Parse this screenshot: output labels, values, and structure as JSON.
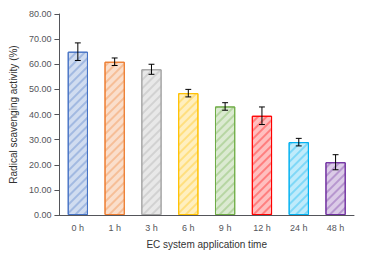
{
  "chart_data": {
    "type": "bar",
    "categories": [
      "0 h",
      "1 h",
      "3 h",
      "6 h",
      "9 h",
      "12 h",
      "24 h",
      "48 h"
    ],
    "values": [
      65.0,
      61.0,
      58.0,
      48.5,
      43.2,
      39.5,
      29.0,
      21.0
    ],
    "errors": [
      3.5,
      1.5,
      2.0,
      1.5,
      1.5,
      3.5,
      1.5,
      3.0
    ],
    "colors": [
      "#4472C4",
      "#ED7D31",
      "#A5A5A5",
      "#FFC000",
      "#70AD47",
      "#FF0000",
      "#00B0F0",
      "#7030A0"
    ],
    "xlabel": "EC system application time",
    "ylabel": "Radical scavenging activity (%)",
    "ylim": [
      0,
      80
    ],
    "yticks": [
      {
        "value": 0,
        "label": "0.00"
      },
      {
        "value": 10,
        "label": "10.00"
      },
      {
        "value": 20,
        "label": "20.00"
      },
      {
        "value": 30,
        "label": "30.00"
      },
      {
        "value": 40,
        "label": "40.00"
      },
      {
        "value": 50,
        "label": "50.00"
      },
      {
        "value": 60,
        "label": "60.00"
      },
      {
        "value": 70,
        "label": "70.00"
      },
      {
        "value": 80,
        "label": "80.00"
      }
    ],
    "grid": false
  }
}
